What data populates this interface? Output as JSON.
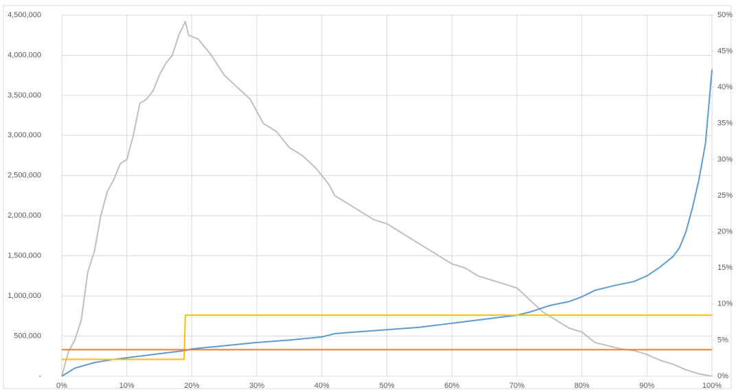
{
  "chart_data": {
    "type": "line",
    "xlim": [
      0,
      100
    ],
    "xticks": [
      {
        "value": 0,
        "label": "0%"
      },
      {
        "value": 10,
        "label": "10%"
      },
      {
        "value": 20,
        "label": "20%"
      },
      {
        "value": 30,
        "label": "30%"
      },
      {
        "value": 40,
        "label": "40%"
      },
      {
        "value": 50,
        "label": "50%"
      },
      {
        "value": 60,
        "label": "60%"
      },
      {
        "value": 70,
        "label": "70%"
      },
      {
        "value": 80,
        "label": "80%"
      },
      {
        "value": 90,
        "label": "90%"
      },
      {
        "value": 100,
        "label": "100%"
      }
    ],
    "ylim": [
      0,
      4500000
    ],
    "yticks": [
      {
        "value": 0,
        "label": "-"
      },
      {
        "value": 500000,
        "label": "500,000"
      },
      {
        "value": 1000000,
        "label": "1,000,000"
      },
      {
        "value": 1500000,
        "label": "1,500,000"
      },
      {
        "value": 2000000,
        "label": "2,000,000"
      },
      {
        "value": 2500000,
        "label": "2,500,000"
      },
      {
        "value": 3000000,
        "label": "3,000,000"
      },
      {
        "value": 3500000,
        "label": "3,500,000"
      },
      {
        "value": 4000000,
        "label": "4,000,000"
      },
      {
        "value": 4500000,
        "label": "4,500,000"
      }
    ],
    "y2lim": [
      0,
      50
    ],
    "y2ticks": [
      {
        "value": 0,
        "label": "0%"
      },
      {
        "value": 5,
        "label": "5%"
      },
      {
        "value": 10,
        "label": "10%"
      },
      {
        "value": 15,
        "label": "15%"
      },
      {
        "value": 20,
        "label": "20%"
      },
      {
        "value": 25,
        "label": "25%"
      },
      {
        "value": 30,
        "label": "30%"
      },
      {
        "value": 35,
        "label": "35%"
      },
      {
        "value": 40,
        "label": "40%"
      },
      {
        "value": 45,
        "label": "45%"
      },
      {
        "value": 50,
        "label": "50%"
      }
    ],
    "grid": true,
    "series": [
      {
        "color": "#bfbfbf",
        "x": [
          0,
          1,
          2,
          3,
          4,
          5,
          6,
          7,
          8,
          9,
          10,
          11,
          12,
          13,
          14,
          15,
          16,
          17,
          18,
          19,
          19.5,
          21,
          23,
          25,
          27,
          29,
          30,
          31,
          33,
          35,
          37,
          39,
          41,
          42,
          44,
          46,
          48,
          50,
          52,
          54,
          56,
          58,
          60,
          62,
          64,
          66,
          68,
          70,
          72,
          74,
          76,
          78,
          80,
          82,
          84,
          86,
          88,
          90,
          92,
          94,
          96,
          98,
          100
        ],
        "values": [
          0,
          300000,
          450000,
          700000,
          1300000,
          1550000,
          2000000,
          2300000,
          2450000,
          2650000,
          2700000,
          3000000,
          3400000,
          3450000,
          3550000,
          3750000,
          3900000,
          4000000,
          4250000,
          4420000,
          4250000,
          4200000,
          4000000,
          3750000,
          3600000,
          3450000,
          3300000,
          3150000,
          3050000,
          2850000,
          2750000,
          2600000,
          2400000,
          2250000,
          2150000,
          2050000,
          1950000,
          1900000,
          1800000,
          1700000,
          1600000,
          1500000,
          1400000,
          1350000,
          1250000,
          1200000,
          1150000,
          1100000,
          950000,
          800000,
          700000,
          600000,
          550000,
          420000,
          380000,
          340000,
          320000,
          270000,
          200000,
          150000,
          80000,
          30000,
          0
        ]
      },
      {
        "color": "#5b9bd5",
        "x": [
          0,
          2,
          5,
          8,
          10,
          15,
          19,
          20,
          25,
          30,
          35,
          40,
          42,
          45,
          50,
          55,
          60,
          65,
          70,
          72,
          75,
          78,
          80,
          82,
          85,
          88,
          90,
          92,
          94,
          95,
          96,
          97,
          98,
          99,
          100
        ],
        "values": [
          0,
          100000,
          170000,
          210000,
          230000,
          280000,
          320000,
          340000,
          380000,
          420000,
          450000,
          490000,
          530000,
          550000,
          580000,
          610000,
          660000,
          710000,
          760000,
          800000,
          880000,
          930000,
          990000,
          1070000,
          1130000,
          1180000,
          1250000,
          1360000,
          1490000,
          1600000,
          1800000,
          2100000,
          2450000,
          2900000,
          3820000
        ]
      },
      {
        "color": "#ffc000",
        "x": [
          0,
          18.8,
          19,
          100
        ],
        "values": [
          210000,
          210000,
          760000,
          760000
        ]
      },
      {
        "color": "#ed7d31",
        "x": [
          0,
          100
        ],
        "values": [
          330000,
          330000
        ]
      }
    ]
  }
}
